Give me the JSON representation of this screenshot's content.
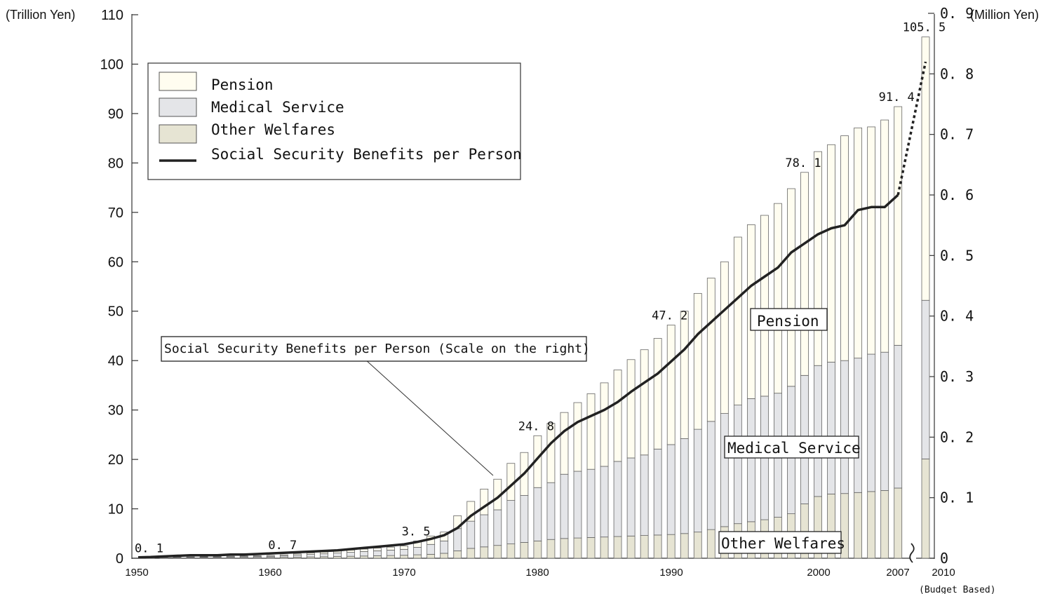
{
  "chart_data": {
    "type": "bar",
    "stacked": true,
    "left_axis": {
      "unit": "(Trillion Yen)",
      "range": [
        0,
        110
      ],
      "ticks": [
        0,
        10,
        20,
        30,
        40,
        50,
        60,
        70,
        80,
        90,
        100,
        110
      ]
    },
    "right_axis": {
      "unit": "(Million Yen)",
      "range": [
        0,
        0.9
      ],
      "ticks": [
        "0",
        "0. 1",
        "0. 2",
        "0. 3",
        "0. 4",
        "0. 5",
        "0. 6",
        "0. 7",
        "0. 8",
        "0. 9"
      ]
    },
    "x_ticks": [
      "1950",
      "1960",
      "1970",
      "1980",
      "1990",
      "2000",
      "2007",
      "2010"
    ],
    "x_note": "(Budget Based)",
    "legend": {
      "position": "top-left",
      "items": [
        {
          "label": "Pension",
          "color": "#fffdf0"
        },
        {
          "label": "Medical Service",
          "color": "#e4e5e8"
        },
        {
          "label": "Other Welfares",
          "color": "#e6e4d3"
        },
        {
          "label": "Social Security Benefits per Person",
          "color": "#222222"
        }
      ]
    },
    "annotations": {
      "pension": "Pension",
      "medical": "Medical Service",
      "other": "Other Welfares",
      "callout": "Social Security Benefits per Person (Scale on the right)"
    },
    "total_labels": [
      {
        "year": 1951,
        "text": "0. 1"
      },
      {
        "year": 1961,
        "text": "0. 7"
      },
      {
        "year": 1971,
        "text": "3. 5"
      },
      {
        "year": 1980,
        "text": "24. 8"
      },
      {
        "year": 1990,
        "text": "47. 2"
      },
      {
        "year": 2000,
        "text": "78. 1"
      },
      {
        "year": 2007,
        "text": "91. 4"
      },
      {
        "year": 2010,
        "text": "105. 5"
      }
    ],
    "years": [
      1951,
      1952,
      1953,
      1954,
      1955,
      1956,
      1957,
      1958,
      1959,
      1960,
      1961,
      1962,
      1963,
      1964,
      1965,
      1966,
      1967,
      1968,
      1969,
      1970,
      1971,
      1972,
      1973,
      1974,
      1975,
      1976,
      1977,
      1978,
      1979,
      1980,
      1981,
      1982,
      1983,
      1984,
      1985,
      1986,
      1987,
      1988,
      1989,
      1990,
      1991,
      1992,
      1993,
      1994,
      1995,
      1996,
      1997,
      1998,
      1999,
      2000,
      2001,
      2002,
      2003,
      2004,
      2005,
      2006,
      2007,
      2010
    ],
    "series": [
      {
        "name": "Other Welfares",
        "values": [
          0.05,
          0.06,
          0.08,
          0.09,
          0.1,
          0.11,
          0.12,
          0.14,
          0.15,
          0.17,
          0.2,
          0.23,
          0.27,
          0.3,
          0.35,
          0.4,
          0.45,
          0.5,
          0.55,
          0.6,
          0.7,
          0.8,
          1.0,
          1.5,
          2.0,
          2.3,
          2.6,
          2.9,
          3.2,
          3.5,
          3.8,
          4.0,
          4.1,
          4.2,
          4.3,
          4.4,
          4.5,
          4.6,
          4.7,
          4.8,
          5.0,
          5.3,
          5.8,
          6.4,
          7.0,
          7.4,
          7.8,
          8.3,
          9.0,
          11.0,
          12.5,
          13.0,
          13.1,
          13.3,
          13.5,
          13.7,
          14.2,
          20.1
        ]
      },
      {
        "name": "Medical Service",
        "values": [
          0.03,
          0.05,
          0.08,
          0.1,
          0.12,
          0.14,
          0.16,
          0.18,
          0.2,
          0.23,
          0.3,
          0.4,
          0.5,
          0.6,
          0.7,
          0.8,
          0.9,
          1.0,
          1.1,
          1.2,
          1.5,
          2.0,
          2.5,
          4.5,
          5.5,
          6.5,
          7.2,
          8.8,
          9.5,
          10.8,
          11.5,
          13.0,
          13.5,
          13.8,
          14.3,
          15.2,
          15.8,
          16.3,
          17.4,
          18.2,
          19.2,
          20.8,
          21.9,
          22.9,
          24.0,
          24.9,
          25.0,
          25.1,
          25.8,
          26.0,
          26.5,
          26.7,
          26.9,
          27.2,
          27.8,
          28.0,
          28.9,
          32.1
        ]
      },
      {
        "name": "Pension",
        "values": [
          0.02,
          0.04,
          0.06,
          0.08,
          0.1,
          0.12,
          0.13,
          0.14,
          0.15,
          0.16,
          0.2,
          0.25,
          0.3,
          0.35,
          0.4,
          0.45,
          0.5,
          0.55,
          0.6,
          0.7,
          1.3,
          1.7,
          1.8,
          2.6,
          4.0,
          5.2,
          6.2,
          7.5,
          8.7,
          10.5,
          12.0,
          12.5,
          13.9,
          15.3,
          16.9,
          18.5,
          19.9,
          21.3,
          22.4,
          24.2,
          25.8,
          27.5,
          29.0,
          30.7,
          34.0,
          35.2,
          36.6,
          38.4,
          40.0,
          41.1,
          43.3,
          44.0,
          45.5,
          46.6,
          46.0,
          47.0,
          48.3,
          53.3
        ]
      },
      {
        "name": "Social Security Benefits per Person",
        "axis": "right",
        "values": [
          0.002,
          0.003,
          0.004,
          0.005,
          0.005,
          0.005,
          0.006,
          0.006,
          0.007,
          0.008,
          0.009,
          0.01,
          0.011,
          0.012,
          0.013,
          0.015,
          0.017,
          0.019,
          0.021,
          0.023,
          0.027,
          0.032,
          0.038,
          0.05,
          0.07,
          0.085,
          0.1,
          0.12,
          0.14,
          0.165,
          0.19,
          0.21,
          0.225,
          0.235,
          0.245,
          0.258,
          0.275,
          0.29,
          0.305,
          0.325,
          0.345,
          0.37,
          0.39,
          0.41,
          0.43,
          0.45,
          0.465,
          0.48,
          0.505,
          0.52,
          0.535,
          0.545,
          0.55,
          0.575,
          0.58,
          0.58,
          0.6,
          0.82
        ],
        "dotted_segment": [
          2007,
          2010
        ]
      }
    ]
  }
}
